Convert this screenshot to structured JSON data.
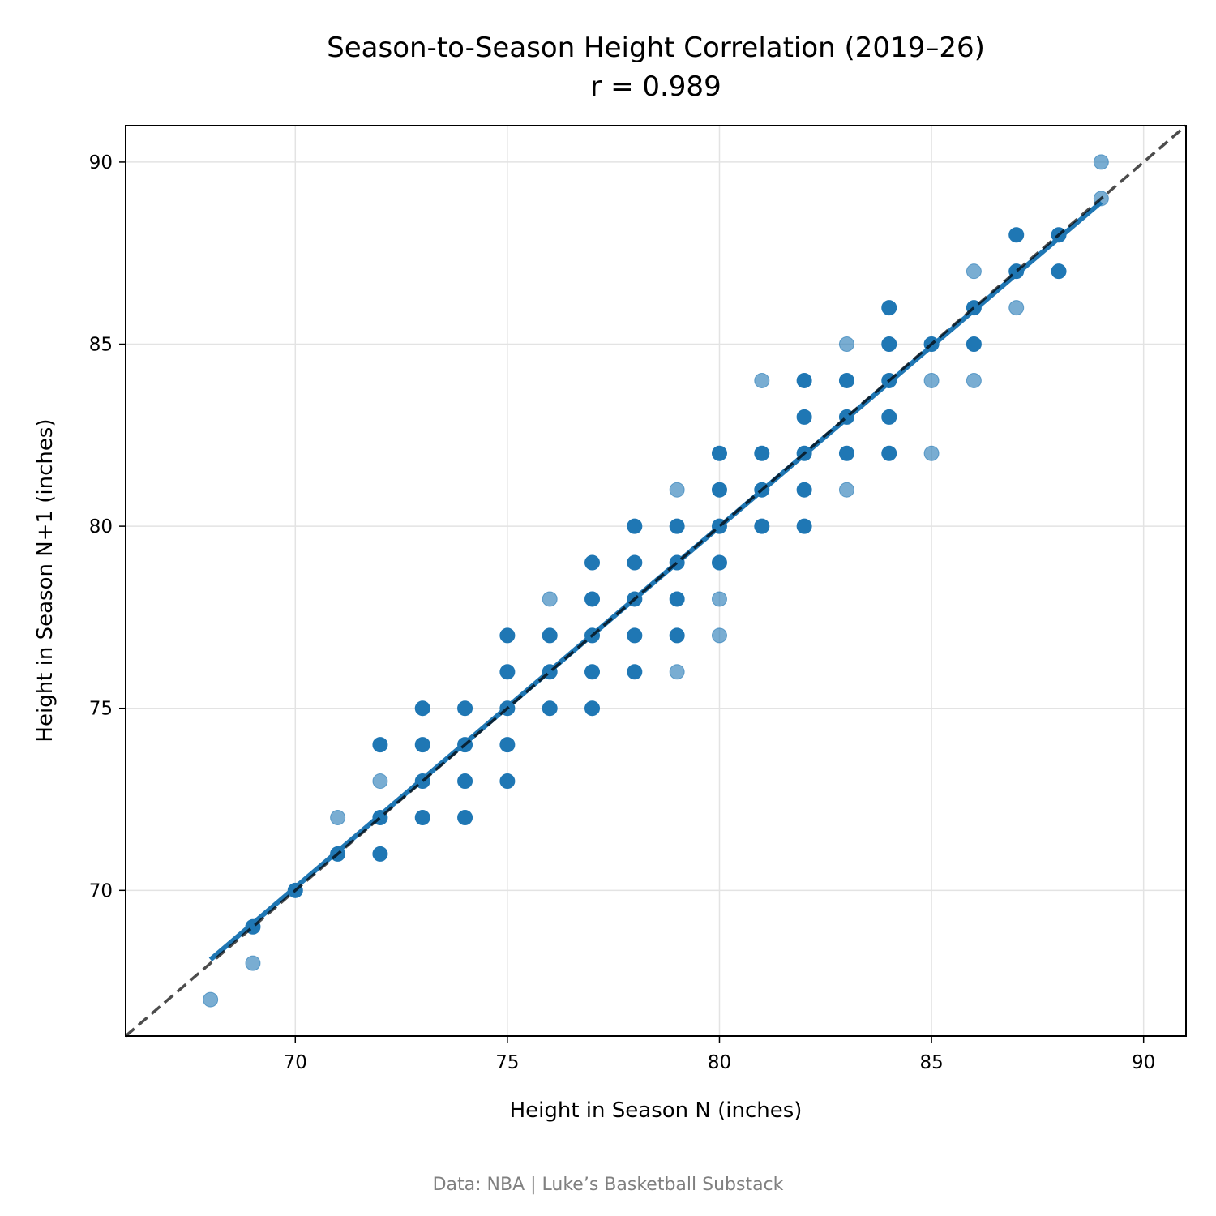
{
  "chart_data": {
    "type": "scatter",
    "title": "Season-to-Season Height Correlation (2019–26)",
    "subtitle": "r = 0.989",
    "xlabel": "Height in Season N (inches)",
    "ylabel": "Height in Season N+1 (inches)",
    "xlim": [
      66,
      91
    ],
    "ylim": [
      66,
      91
    ],
    "xticks": [
      70,
      75,
      80,
      85,
      90
    ],
    "yticks": [
      70,
      75,
      80,
      85,
      90
    ],
    "grid": true,
    "points_light": [
      [
        68,
        67
      ],
      [
        69,
        68
      ],
      [
        71,
        72
      ],
      [
        72,
        73
      ],
      [
        76,
        78
      ],
      [
        79,
        81
      ],
      [
        79,
        76
      ],
      [
        80,
        77
      ],
      [
        80,
        78
      ],
      [
        81,
        84
      ],
      [
        83,
        85
      ],
      [
        83,
        81
      ],
      [
        85,
        84
      ],
      [
        85,
        82
      ],
      [
        86,
        87
      ],
      [
        86,
        84
      ],
      [
        87,
        86
      ],
      [
        89,
        90
      ],
      [
        89,
        89
      ]
    ],
    "points_dark": [
      [
        69,
        69
      ],
      [
        70,
        70
      ],
      [
        71,
        71
      ],
      [
        72,
        74
      ],
      [
        72,
        72
      ],
      [
        72,
        71
      ],
      [
        73,
        75
      ],
      [
        73,
        74
      ],
      [
        73,
        73
      ],
      [
        73,
        72
      ],
      [
        74,
        75
      ],
      [
        74,
        74
      ],
      [
        74,
        73
      ],
      [
        74,
        72
      ],
      [
        75,
        77
      ],
      [
        75,
        76
      ],
      [
        75,
        75
      ],
      [
        75,
        74
      ],
      [
        75,
        73
      ],
      [
        76,
        77
      ],
      [
        76,
        76
      ],
      [
        76,
        75
      ],
      [
        77,
        79
      ],
      [
        77,
        78
      ],
      [
        77,
        77
      ],
      [
        77,
        76
      ],
      [
        77,
        75
      ],
      [
        78,
        80
      ],
      [
        78,
        79
      ],
      [
        78,
        78
      ],
      [
        78,
        77
      ],
      [
        78,
        76
      ],
      [
        79,
        80
      ],
      [
        79,
        79
      ],
      [
        79,
        78
      ],
      [
        79,
        77
      ],
      [
        80,
        82
      ],
      [
        80,
        81
      ],
      [
        80,
        80
      ],
      [
        80,
        79
      ],
      [
        81,
        82
      ],
      [
        81,
        81
      ],
      [
        81,
        80
      ],
      [
        82,
        84
      ],
      [
        82,
        83
      ],
      [
        82,
        82
      ],
      [
        82,
        81
      ],
      [
        82,
        80
      ],
      [
        83,
        84
      ],
      [
        83,
        83
      ],
      [
        83,
        82
      ],
      [
        84,
        86
      ],
      [
        84,
        85
      ],
      [
        84,
        84
      ],
      [
        84,
        83
      ],
      [
        84,
        82
      ],
      [
        85,
        85
      ],
      [
        86,
        86
      ],
      [
        86,
        85
      ],
      [
        87,
        88
      ],
      [
        87,
        87
      ],
      [
        88,
        88
      ],
      [
        88,
        87
      ]
    ],
    "regression_line": {
      "x": [
        68,
        89
      ],
      "y": [
        68.1,
        88.9
      ],
      "color": "#1f77b4"
    },
    "identity_line": {
      "label": "y = x",
      "color": "#000000"
    },
    "point_color": "#1f77b4"
  },
  "footer": {
    "source": "Data: NBA  |  Luke’s Basketball Substack"
  }
}
